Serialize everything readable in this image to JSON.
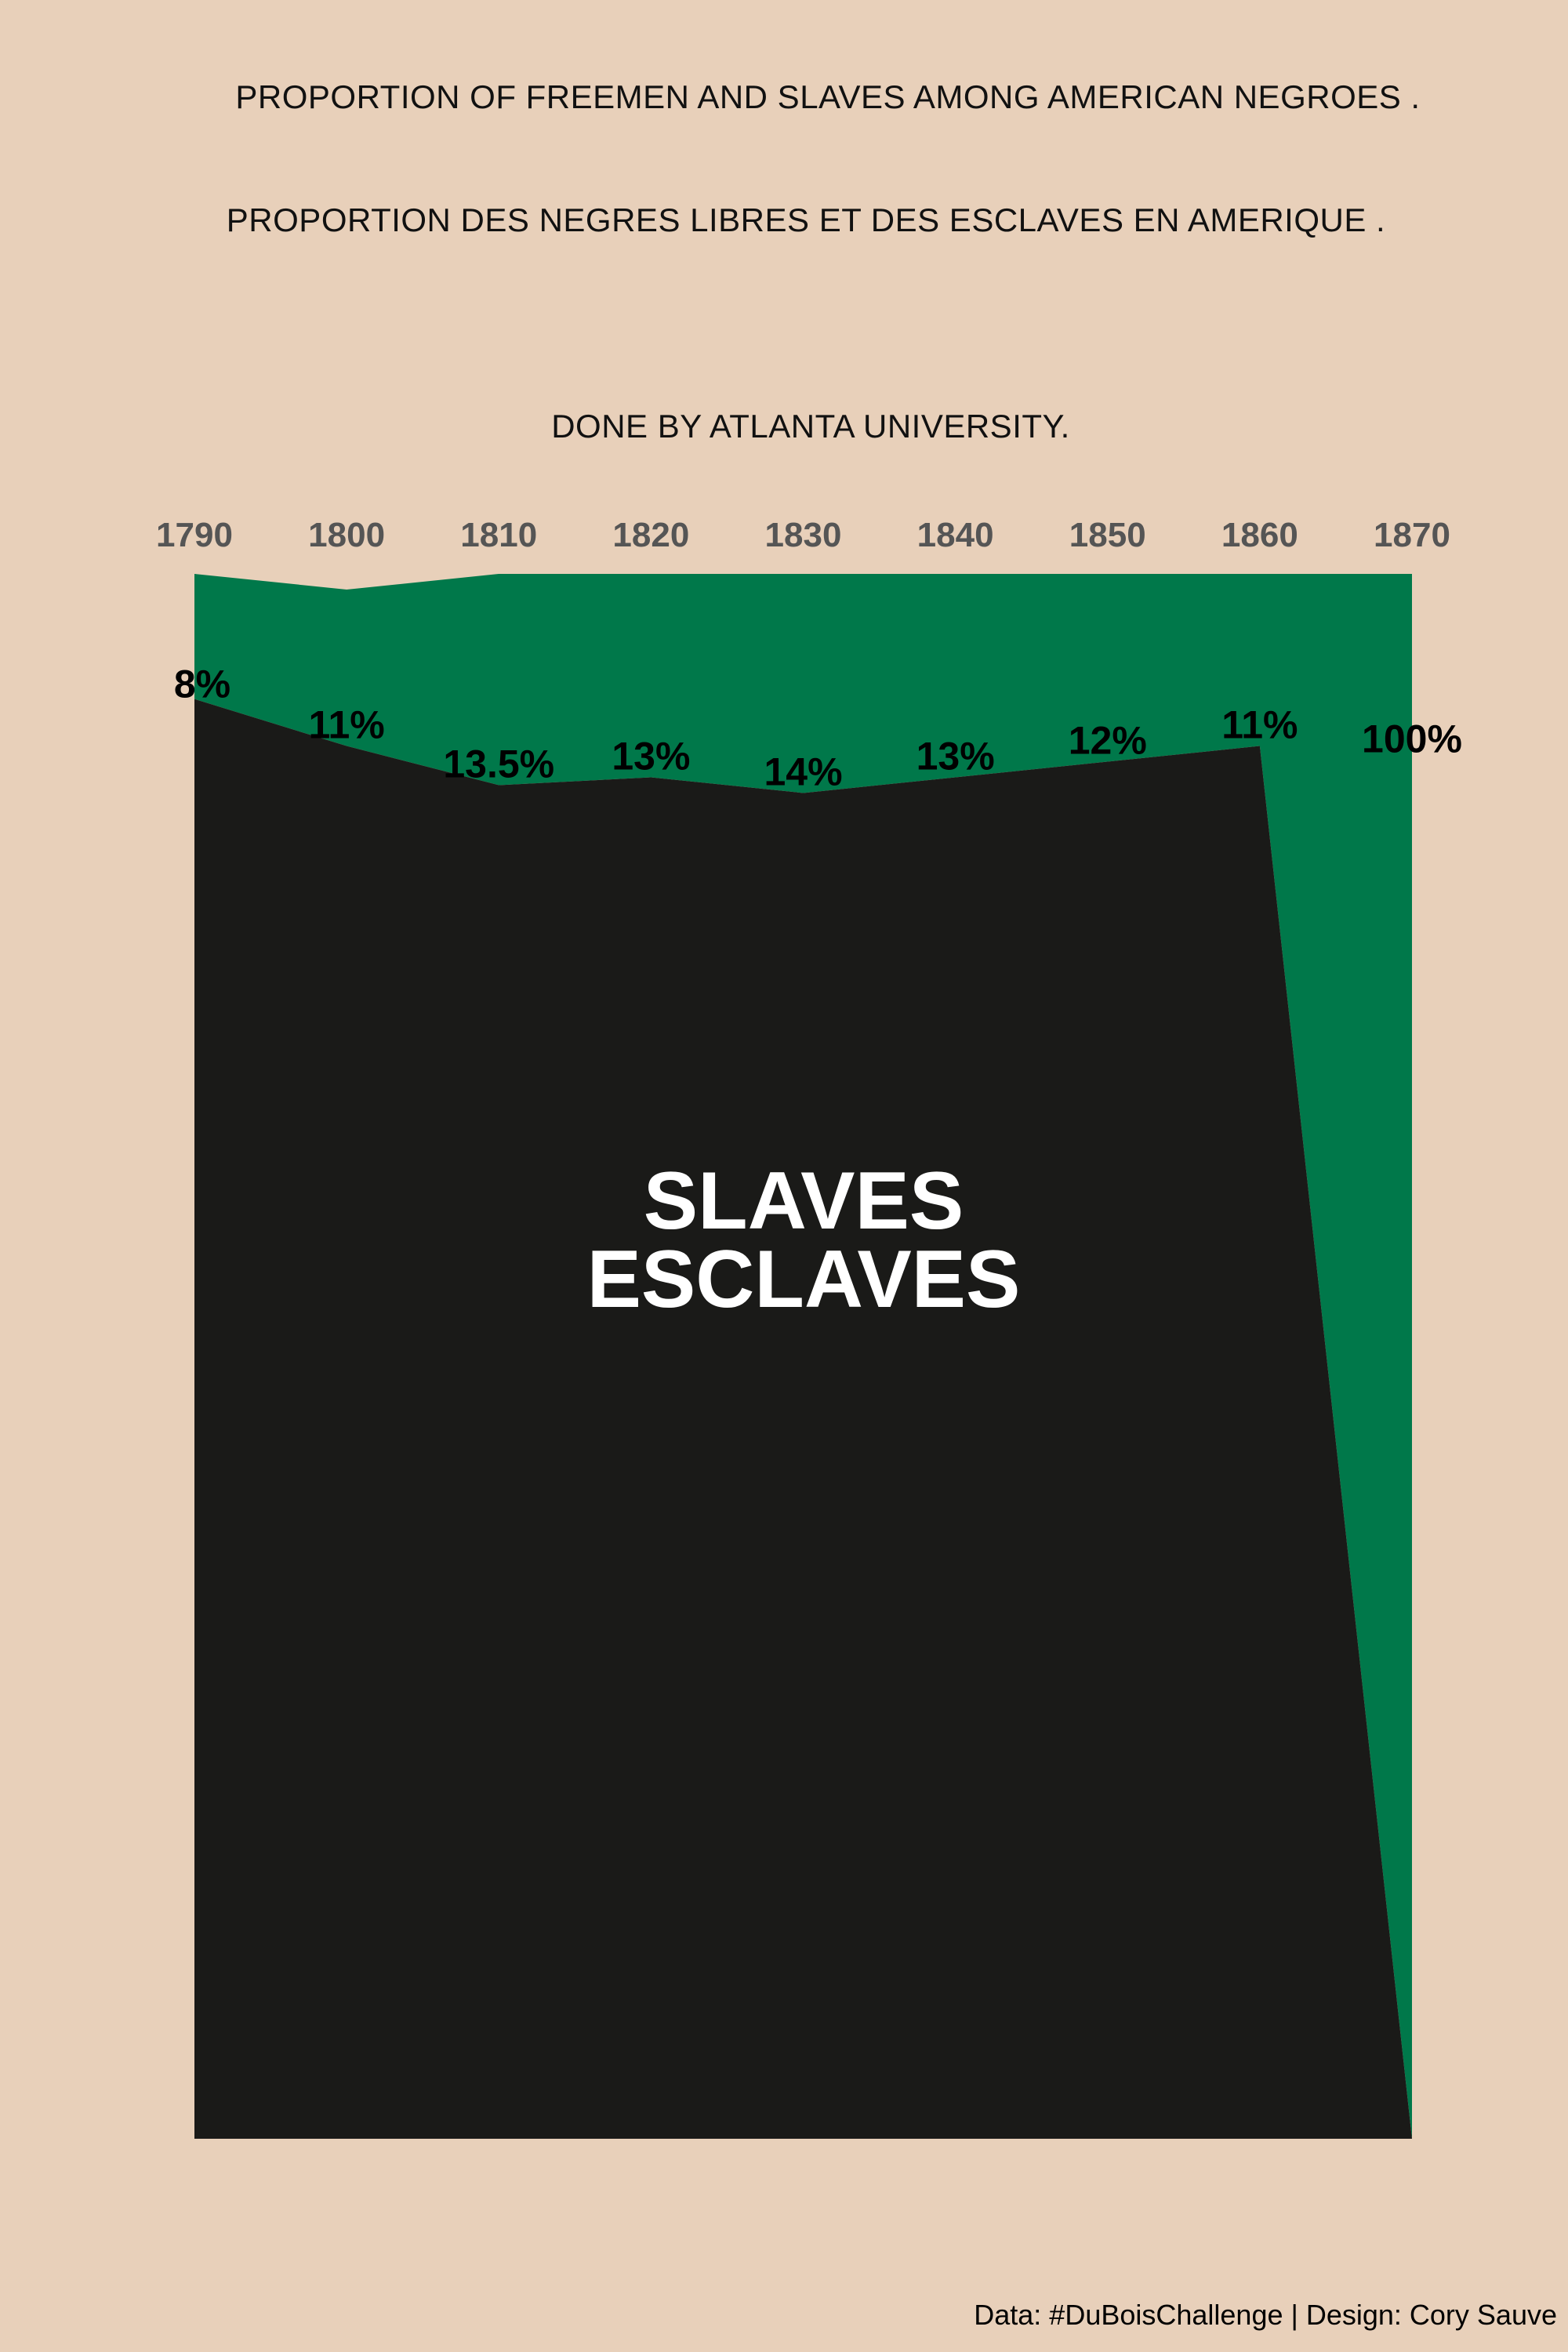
{
  "page": {
    "background": "#E8D0BA",
    "title_en": "PROPORTION OF FREEMEN AND SLAVES AMONG AMERICAN NEGROES .",
    "title_fr": "PROPORTION DES NEGRES LIBRES ET DES ESCLAVES EN AMERIQUE .",
    "credit": "DONE BY ATLANTA UNIVERSITY.",
    "footer": "Data: #DuBoisChallenge | Design: Cory Sauve"
  },
  "chart_data": {
    "type": "area",
    "title": "PROPORTION OF FREEMEN AND SLAVES AMONG AMERICAN NEGROES .",
    "subtitle": "PROPORTION DES NEGRES LIBRES ET DES ESCLAVES EN AMERIQUE .",
    "x": [
      1790,
      1800,
      1810,
      1820,
      1830,
      1840,
      1850,
      1860,
      1870
    ],
    "xlabel": "",
    "ylabel": "",
    "x_axis_position": "top",
    "grid": false,
    "legend": "none",
    "series": [
      {
        "name": "",
        "color": "#00784A",
        "values": [
          8,
          11,
          13.5,
          13,
          14,
          13,
          12,
          11,
          100
        ],
        "labels": [
          "8%",
          "11%",
          "13.5%",
          "13%",
          "14%",
          "13%",
          "12%",
          "11%",
          "100%"
        ]
      },
      {
        "name": "SLAVES\nESCLAVES",
        "color": "#1A1A18",
        "values": [
          92,
          89,
          86.5,
          87,
          86,
          87,
          88,
          89,
          0
        ]
      }
    ],
    "area_label_lines": [
      "SLAVES",
      "ESCLAVES"
    ],
    "ylim": [
      0,
      100
    ],
    "top_edge_variation": [
      0,
      1,
      0,
      0,
      0,
      0,
      0,
      0,
      0
    ]
  }
}
